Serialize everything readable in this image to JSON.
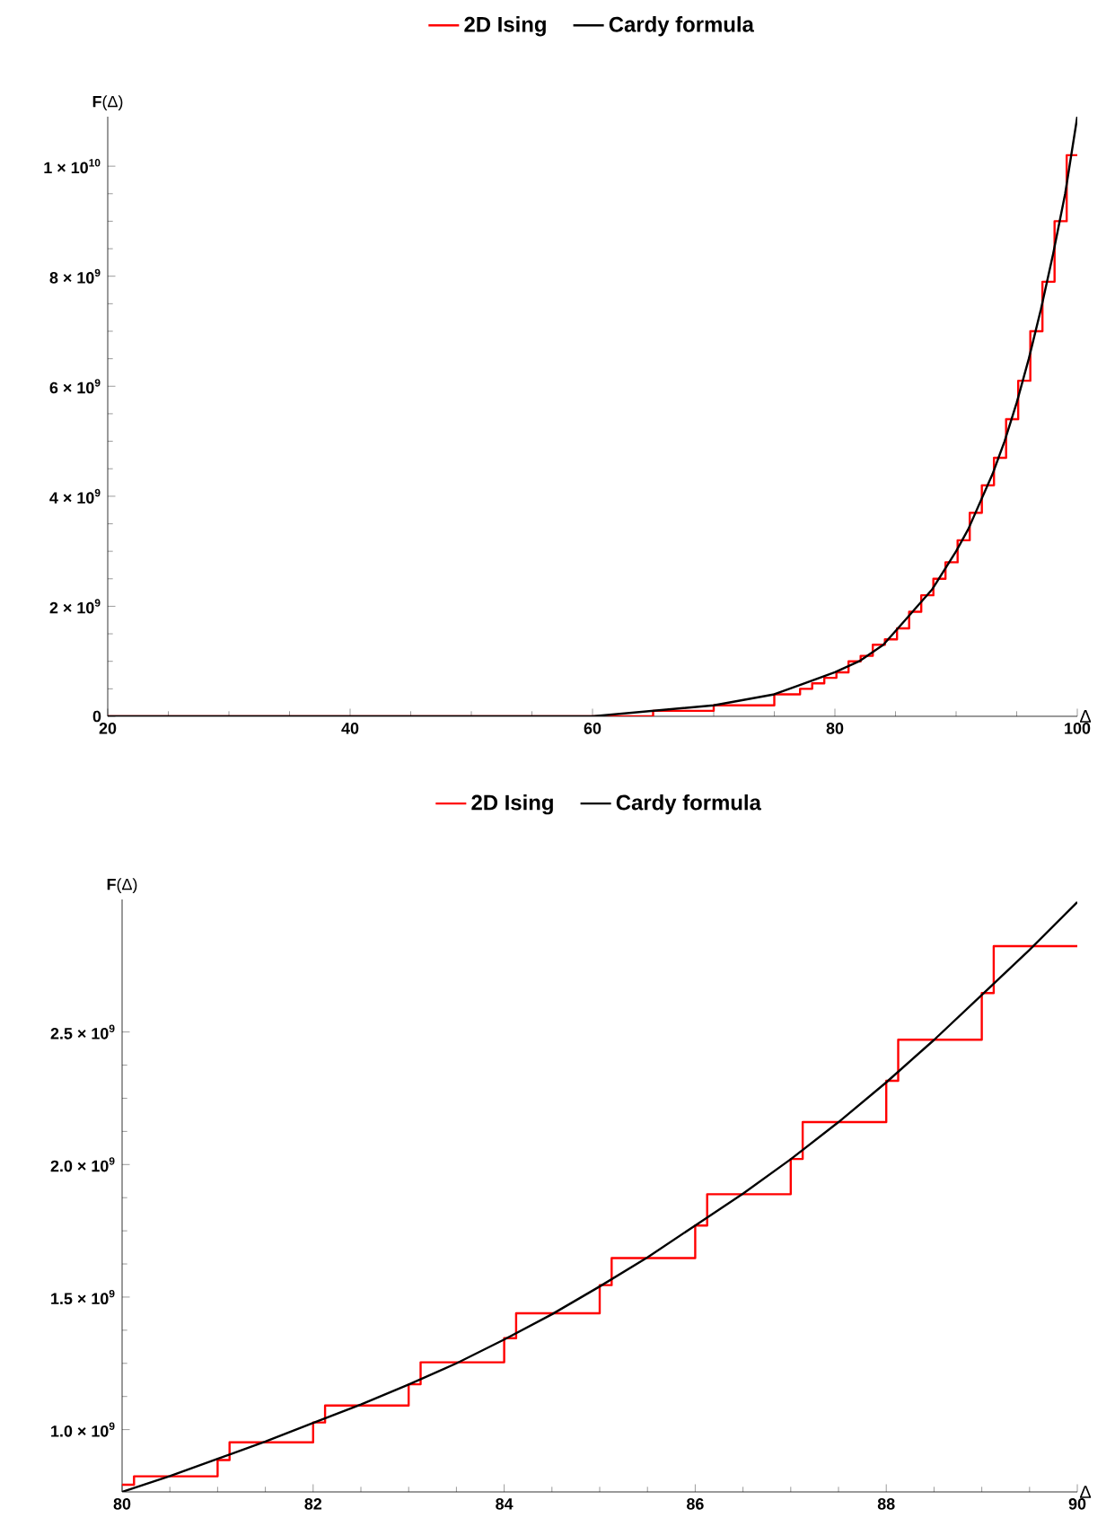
{
  "chart_data": [
    {
      "type": "line",
      "xlabel": "Δ",
      "ylabel": "**F**(Δ)",
      "legend": "top",
      "xlim": [
        20,
        100
      ],
      "ylim": [
        0,
        10900000000
      ],
      "xticks": [
        20,
        40,
        60,
        80,
        100
      ],
      "yticks": [
        0,
        {
          "value": 2000000000,
          "label": "2 × 10$^{9}$"
        },
        {
          "value": 4000000000,
          "label": "4 × 10$^{9}$"
        },
        {
          "value": 6000000000,
          "label": "6 × 10$^{9}$"
        },
        {
          "value": 8000000000,
          "label": "8 × 10$^{9}$"
        },
        {
          "value": 10000000000,
          "label": "1 × 10$^{10}$"
        }
      ],
      "series": [
        {
          "name": "2D Ising",
          "type": "step",
          "color": "#ff0000",
          "x": [
            20,
            60,
            65,
            70,
            75,
            76.125,
            77.125,
            78.125,
            79.125,
            80.125,
            81.125,
            82.125,
            83.125,
            84.125,
            85.125,
            86.125,
            87.125,
            88.125,
            89.125,
            90.125,
            91.125,
            92.125,
            93.125,
            94.125,
            95.125,
            96.125,
            97.125,
            98.125,
            99.125,
            100
          ],
          "values": [
            0,
            0,
            100000000,
            200000000,
            400000000,
            400000000,
            500000000,
            600000000,
            700000000,
            800000000,
            1000000000,
            1100000000,
            1300000000,
            1400000000,
            1600000000,
            1900000000,
            2200000000,
            2500000000,
            2800000000,
            3200000000,
            3700000000,
            4200000000,
            4700000000,
            5400000000,
            6100000000,
            7000000000,
            7900000000,
            9000000000,
            10200000000,
            10200000000
          ]
        },
        {
          "name": "Cardy formula",
          "type": "line",
          "color": "#000000",
          "x": [
            20,
            40,
            50,
            60,
            65,
            70,
            75,
            80,
            82,
            84,
            86,
            88,
            90,
            91,
            92,
            93,
            94,
            95,
            96,
            97,
            98,
            99,
            100
          ],
          "values": [
            0,
            0,
            0,
            0,
            100000000,
            200000000,
            400000000,
            800000000,
            1000000000,
            1300000000,
            1800000000,
            2300000000,
            3000000000,
            3400000000,
            3900000000,
            4400000000,
            5000000000,
            5700000000,
            6500000000,
            7400000000,
            8400000000,
            9500000000,
            10900000000
          ]
        }
      ]
    },
    {
      "type": "line",
      "xlabel": "Δ",
      "ylabel": "**F**(Δ)",
      "legend": "top",
      "xlim": [
        80,
        90
      ],
      "ylim": [
        765000000,
        3000000000
      ],
      "xticks": [
        80,
        82,
        84,
        86,
        88,
        90
      ],
      "yticks": [
        {
          "value": 1000000000,
          "label": "1.0 × 10$^{9}$"
        },
        {
          "value": 1500000000,
          "label": "1.5 × 10$^{9}$"
        },
        {
          "value": 2000000000,
          "label": "2.0 × 10$^{9}$"
        },
        {
          "value": 2500000000,
          "label": "2.5 × 10$^{9}$"
        }
      ],
      "series": [
        {
          "name": "2D Ising",
          "type": "step",
          "color": "#ff0000",
          "x": [
            80,
            80.125,
            81,
            81.125,
            82,
            82.125,
            83,
            83.125,
            84,
            84.125,
            85,
            85.125,
            86,
            86.125,
            87,
            87.125,
            88,
            88.125,
            89,
            89.125,
            90
          ],
          "values": [
            792000000,
            824000000,
            885000000,
            952000000,
            1027000000,
            1091000000,
            1171000000,
            1254000000,
            1345000000,
            1439000000,
            1545000000,
            1647000000,
            1770000000,
            1888000000,
            2021000000,
            2160000000,
            2316000000,
            2471000000,
            2647000000,
            2824000000,
            2824000000
          ]
        },
        {
          "name": "Cardy formula",
          "type": "line",
          "color": "#000000",
          "x": [
            80,
            80.5,
            81,
            81.5,
            82,
            82.5,
            83,
            83.5,
            84,
            84.5,
            85,
            85.5,
            86,
            86.5,
            87,
            87.5,
            88,
            88.5,
            89,
            89.5,
            90
          ],
          "values": [
            765000000,
            825000000,
            890000000,
            955000000,
            1025000000,
            1095000000,
            1170000000,
            1250000000,
            1340000000,
            1435000000,
            1540000000,
            1650000000,
            1770000000,
            1890000000,
            2020000000,
            2160000000,
            2310000000,
            2470000000,
            2640000000,
            2810000000,
            2990000000
          ]
        }
      ]
    }
  ]
}
